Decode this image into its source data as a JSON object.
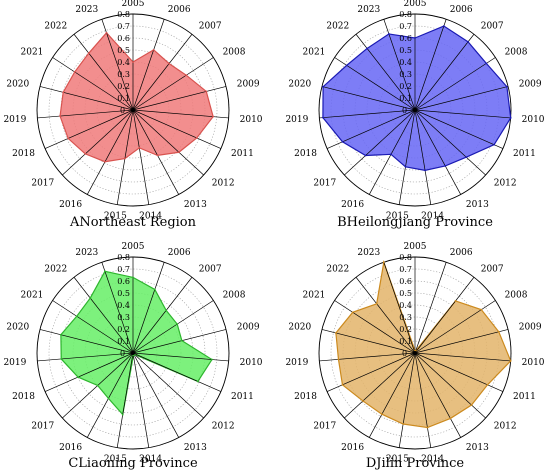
{
  "chart_data": [
    {
      "type": "radar",
      "title": "ANortheast Region",
      "color": "#f07a7a",
      "stroke": "#d9534f",
      "categories": [
        "2005",
        "2006",
        "2007",
        "2008",
        "2009",
        "2010",
        "2011",
        "2012",
        "2013",
        "2014",
        "2015",
        "2016",
        "2017",
        "2018",
        "2019",
        "2020",
        "2021",
        "2022",
        "2023"
      ],
      "values": [
        0.4,
        0.53,
        0.49,
        0.53,
        0.63,
        0.67,
        0.58,
        0.52,
        0.43,
        0.32,
        0.41,
        0.49,
        0.54,
        0.59,
        0.61,
        0.6,
        0.58,
        0.6,
        0.68
      ],
      "ticks": [
        "0.1",
        "0.2",
        "0.3",
        "0.4",
        "0.5",
        "0.6",
        "0.7",
        "0.8"
      ],
      "rmax": 0.8
    },
    {
      "type": "radar",
      "title": "BHeilongjiang Province",
      "color": "#6666f5",
      "stroke": "#1a1ab3",
      "categories": [
        "2005",
        "2006",
        "2007",
        "2008",
        "2009",
        "2010",
        "2011",
        "2012",
        "2013",
        "2014",
        "2015",
        "2016",
        "2017",
        "2018",
        "2019",
        "2020",
        "2021",
        "2022",
        "2023"
      ],
      "values": [
        0.6,
        0.74,
        0.72,
        0.71,
        0.79,
        0.8,
        0.72,
        0.58,
        0.53,
        0.51,
        0.48,
        0.42,
        0.56,
        0.66,
        0.77,
        0.79,
        0.68,
        0.65,
        0.67
      ],
      "ticks": [
        "0.1",
        "0.2",
        "0.3",
        "0.4",
        "0.5",
        "0.6",
        "0.7",
        "0.8"
      ],
      "rmax": 0.8
    },
    {
      "type": "radar",
      "title": "CLiaoning Province",
      "color": "#66ee66",
      "stroke": "#2db52d",
      "categories": [
        "2005",
        "2006",
        "2007",
        "2008",
        "2009",
        "2010",
        "2011",
        "2012",
        "2013",
        "2014",
        "2015",
        "2016",
        "2017",
        "2018",
        "2019",
        "2020",
        "2021",
        "2022",
        "2023"
      ],
      "values": [
        0.63,
        0.56,
        0.45,
        0.44,
        0.42,
        0.66,
        0.59,
        0.02,
        0.02,
        0.02,
        0.52,
        0.43,
        0.4,
        0.5,
        0.6,
        0.62,
        0.56,
        0.58,
        0.72
      ],
      "ticks": [
        "0.1",
        "0.2",
        "0.3",
        "0.4",
        "0.5",
        "0.6",
        "0.7",
        "0.8"
      ],
      "rmax": 0.8
    },
    {
      "type": "radar",
      "title": "DJilin Province",
      "color": "#e3b46a",
      "stroke": "#cc8a1e",
      "categories": [
        "2005",
        "2006",
        "2007",
        "2008",
        "2009",
        "2010",
        "2011",
        "2012",
        "2013",
        "2014",
        "2015",
        "2016",
        "2017",
        "2018",
        "2019",
        "2020",
        "2021",
        "2022",
        "2023"
      ],
      "values": [
        0.02,
        0.02,
        0.55,
        0.66,
        0.72,
        0.8,
        0.66,
        0.64,
        0.62,
        0.63,
        0.6,
        0.58,
        0.59,
        0.66,
        0.64,
        0.68,
        0.62,
        0.52,
        0.8
      ],
      "ticks": [
        "0.1",
        "0.2",
        "0.3",
        "0.4",
        "0.5",
        "0.6",
        "0.7",
        "0.8"
      ],
      "rmax": 0.8
    }
  ]
}
